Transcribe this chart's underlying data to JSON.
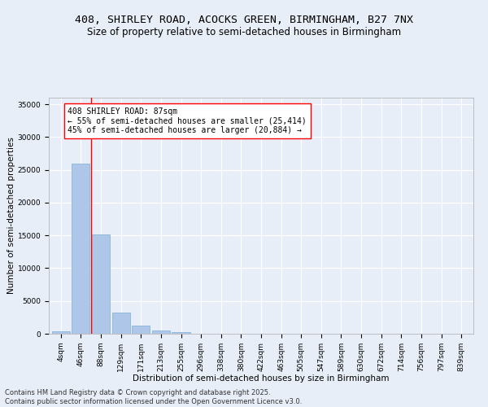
{
  "title_line1": "408, SHIRLEY ROAD, ACOCKS GREEN, BIRMINGHAM, B27 7NX",
  "title_line2": "Size of property relative to semi-detached houses in Birmingham",
  "xlabel": "Distribution of semi-detached houses by size in Birmingham",
  "ylabel": "Number of semi-detached properties",
  "categories": [
    "4sqm",
    "46sqm",
    "88sqm",
    "129sqm",
    "171sqm",
    "213sqm",
    "255sqm",
    "296sqm",
    "338sqm",
    "380sqm",
    "422sqm",
    "463sqm",
    "505sqm",
    "547sqm",
    "589sqm",
    "630sqm",
    "672sqm",
    "714sqm",
    "756sqm",
    "797sqm",
    "839sqm"
  ],
  "values": [
    400,
    26000,
    15200,
    3200,
    1300,
    500,
    200,
    0,
    0,
    0,
    0,
    0,
    0,
    0,
    0,
    0,
    0,
    0,
    0,
    0,
    0
  ],
  "bar_color": "#aec6e8",
  "bar_edge_color": "#7aafd4",
  "vline_color": "red",
  "vline_x_index": 1.5,
  "annotation_text": "408 SHIRLEY ROAD: 87sqm\n← 55% of semi-detached houses are smaller (25,414)\n45% of semi-detached houses are larger (20,884) →",
  "ylim": [
    0,
    36000
  ],
  "yticks": [
    0,
    5000,
    10000,
    15000,
    20000,
    25000,
    30000,
    35000
  ],
  "bg_color": "#e8eef8",
  "plot_bg_color": "#e8eef8",
  "grid_color": "#ffffff",
  "footer_text": "Contains HM Land Registry data © Crown copyright and database right 2025.\nContains public sector information licensed under the Open Government Licence v3.0.",
  "title_fontsize": 9.5,
  "subtitle_fontsize": 8.5,
  "axis_label_fontsize": 7.5,
  "tick_fontsize": 6.5,
  "annotation_fontsize": 7,
  "footer_fontsize": 6
}
